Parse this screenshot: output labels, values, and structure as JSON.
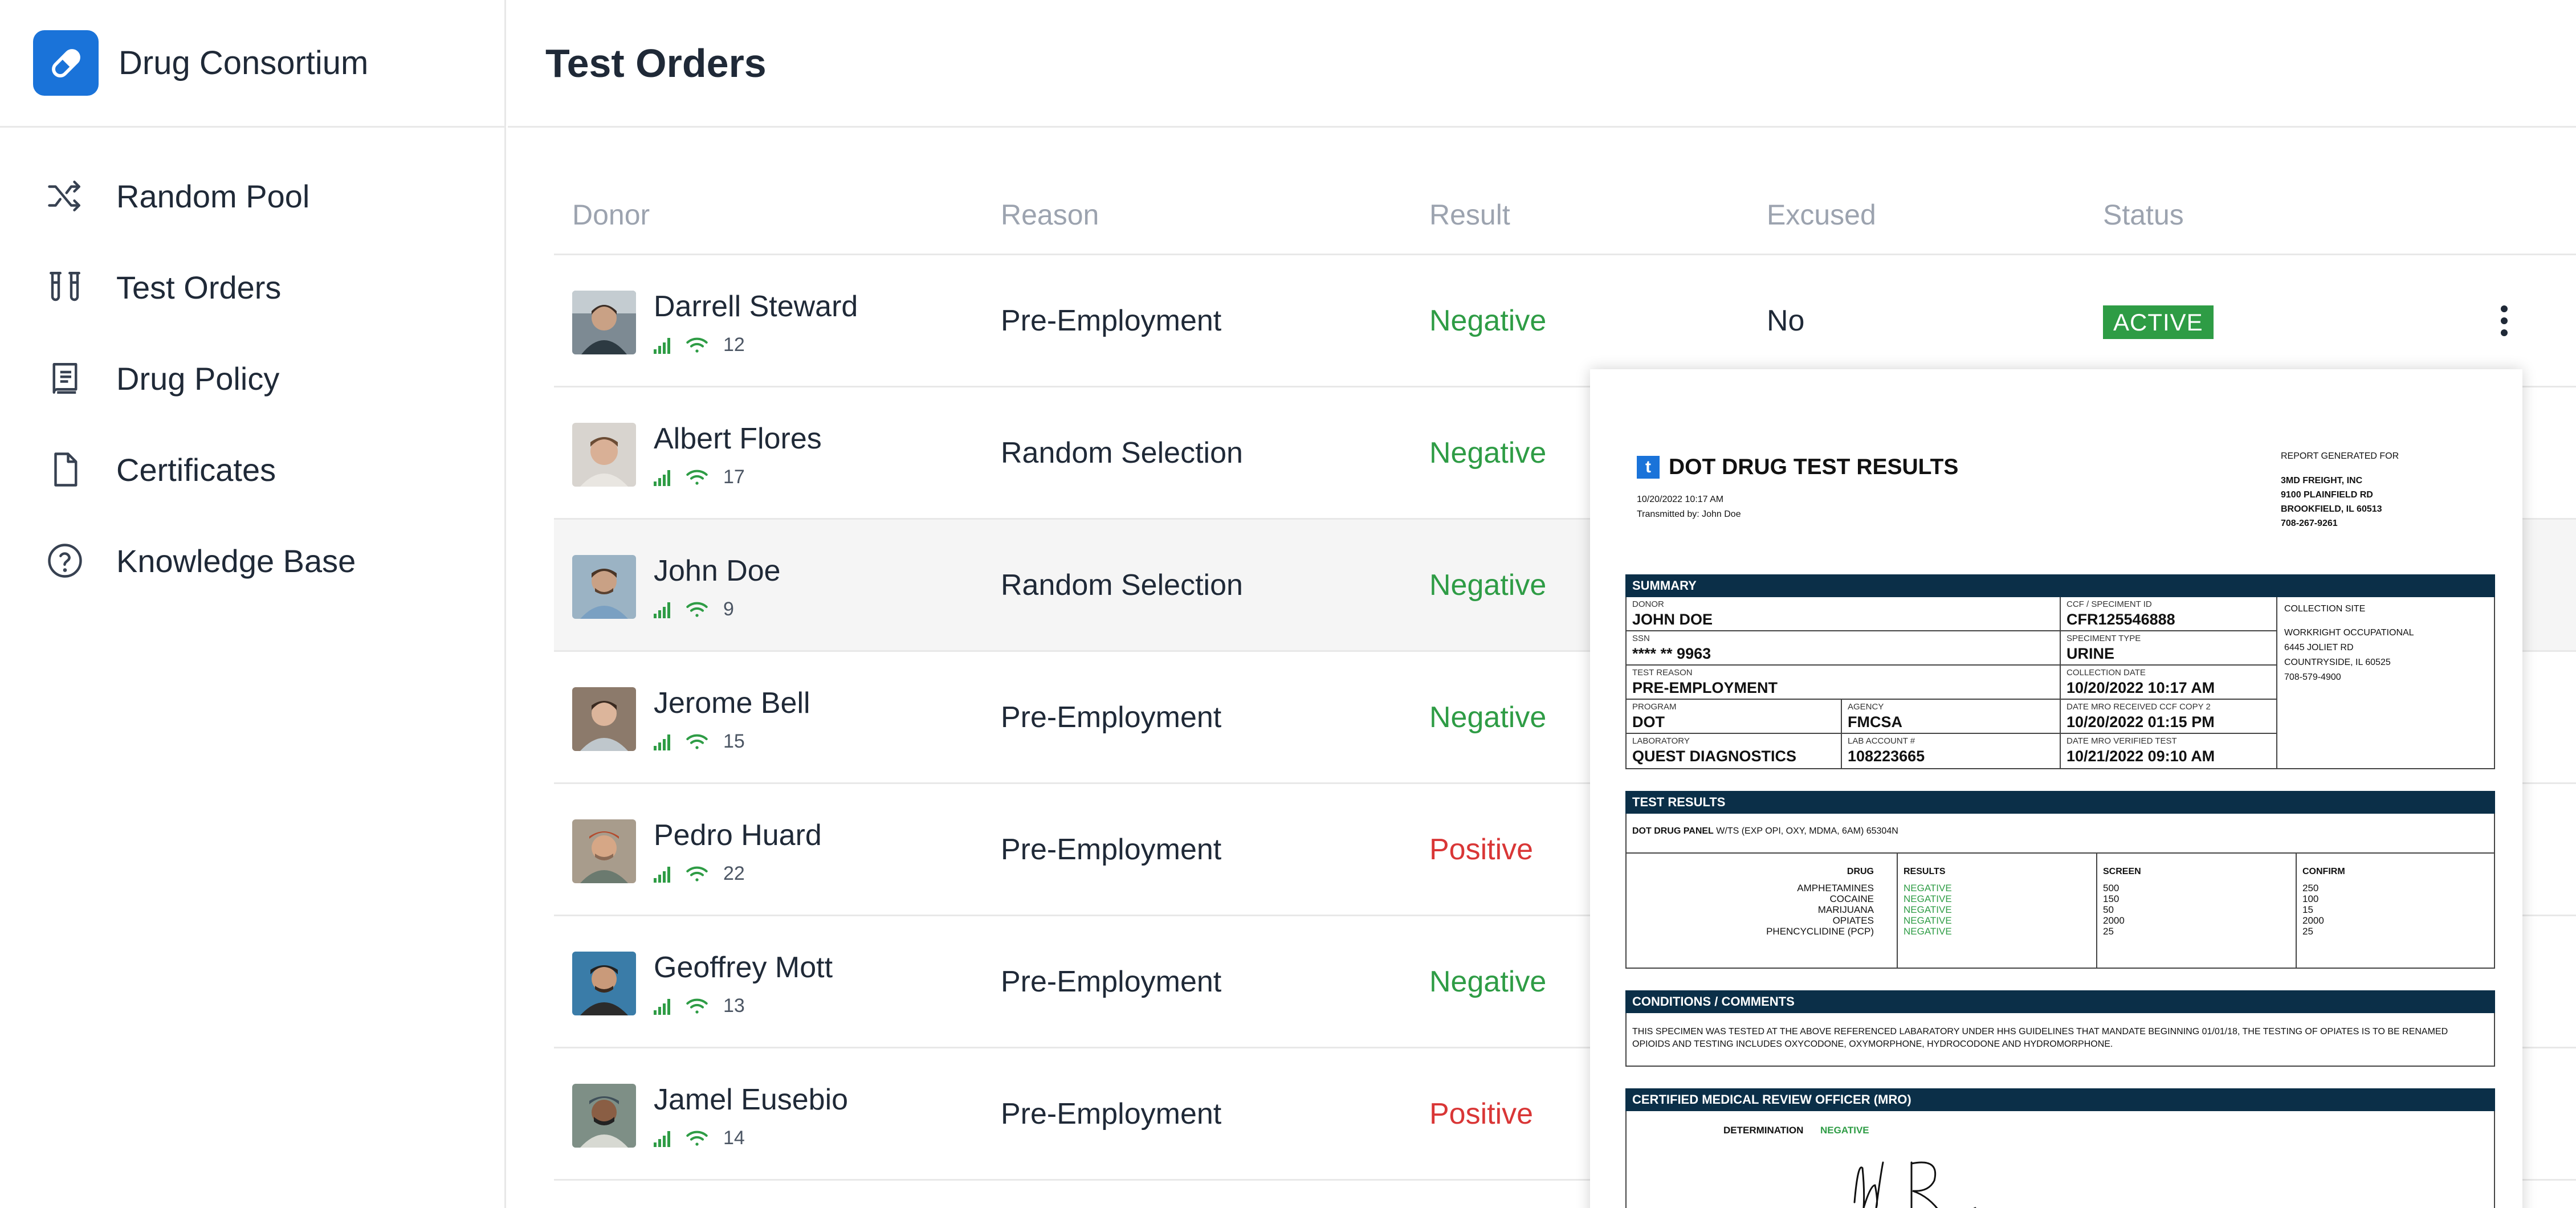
{
  "app": {
    "name": "Drug Consortium"
  },
  "sidebar": {
    "items": [
      {
        "label": "Random Pool",
        "icon": "shuffle-icon"
      },
      {
        "label": "Test Orders",
        "icon": "test-tubes-icon"
      },
      {
        "label": "Drug Policy",
        "icon": "book-icon"
      },
      {
        "label": "Certificates",
        "icon": "document-icon"
      },
      {
        "label": "Knowledge Base",
        "icon": "help-circle-icon"
      }
    ]
  },
  "page": {
    "title": "Test Orders"
  },
  "table": {
    "headers": [
      "Donor",
      "Reason",
      "Result",
      "Excused",
      "Status"
    ],
    "rows": [
      {
        "name": "Darrell Steward",
        "count": "12",
        "reason": "Pre-Employment",
        "result": "Negative",
        "excused": "No",
        "status": "ACTIVE"
      },
      {
        "name": "Albert Flores",
        "count": "17",
        "reason": "Random Selection",
        "result": "Negative"
      },
      {
        "name": "John Doe",
        "count": "9",
        "reason": "Random Selection",
        "result": "Negative"
      },
      {
        "name": "Jerome Bell",
        "count": "15",
        "reason": "Pre-Employment",
        "result": "Negative"
      },
      {
        "name": "Pedro Huard",
        "count": "22",
        "reason": "Pre-Employment",
        "result": "Positive"
      },
      {
        "name": "Geoffrey Mott",
        "count": "13",
        "reason": "Pre-Employment",
        "result": "Negative"
      },
      {
        "name": "Jamel Eusebio",
        "count": "14",
        "reason": "Pre-Employment",
        "result": "Positive"
      }
    ]
  },
  "report": {
    "logo_letter": "t",
    "title": "DOT DRUG TEST RESULTS",
    "datetime": "10/20/2022 10:17 AM",
    "transmitted": "Transmitted by: John Doe",
    "generated_for_label": "REPORT GENERATED FOR",
    "generated_for": [
      "3MD FREIGHT, INC",
      "9100 PLAINFIELD RD",
      "BROOKFIELD, IL 60513",
      "708-267-9261"
    ],
    "summary_title": "SUMMARY",
    "summary": {
      "donor_label": "DONOR",
      "donor": "JOHN DOE",
      "ccf_label": "CCF / SPECIMENT ID",
      "ccf": "CFR125546888",
      "ssn_label": "SSN",
      "ssn": "**** ** 9963",
      "specimen_label": "SPECIMENT TYPE",
      "specimen": "URINE",
      "reason_label": "TEST REASON",
      "reason": "PRE-EMPLOYMENT",
      "collection_label": "COLLECTION DATE",
      "collection": "10/20/2022 10:17 AM",
      "program_label": "PROGRAM",
      "program": "DOT",
      "agency_label": "AGENCY",
      "agency": "FMCSA",
      "mro_received_label": "DATE MRO RECEIVED CCF COPY 2",
      "mro_received": "10/20/2022 01:15 PM",
      "lab_label": "LABORATORY",
      "lab": "QUEST DIAGNOSTICS",
      "lab_account_label": "LAB ACCOUNT #",
      "lab_account": "108223665",
      "mro_verified_label": "DATE MRO VERIFIED TEST",
      "mro_verified": "10/21/2022 09:10 AM",
      "site_label": "COLLECTION SITE",
      "site": [
        "WORKRIGHT OCCUPATIONAL",
        "6445 JOLIET RD",
        "COUNTRYSIDE, IL 60525",
        "708-579-4900"
      ]
    },
    "results_title": "TEST RESULTS",
    "panel_label": "DOT DRUG PANEL",
    "panel": "W/TS (EXP OPI, OXY, MDMA, 6AM) 65304N",
    "columns": [
      "DRUG",
      "RESULTS",
      "SCREEN",
      "CONFIRM"
    ],
    "drugs": [
      {
        "drug": "AMPHETAMINES",
        "result": "NEGATIVE",
        "screen": "500",
        "confirm": "250"
      },
      {
        "drug": "COCAINE",
        "result": "NEGATIVE",
        "screen": "150",
        "confirm": "100"
      },
      {
        "drug": "MARIJUANA",
        "result": "NEGATIVE",
        "screen": "50",
        "confirm": "15"
      },
      {
        "drug": "OPIATES",
        "result": "NEGATIVE",
        "screen": "2000",
        "confirm": "2000"
      },
      {
        "drug": "PHENCYCLIDINE (PCP)",
        "result": "NEGATIVE",
        "screen": "25",
        "confirm": "25"
      }
    ],
    "conditions_title": "CONDITIONS / COMMENTS",
    "conditions": "THIS SPECIMEN WAS TESTED AT THE ABOVE REFERENCED LABARATORY UNDER HHS GUIDELINES THAT MANDATE BEGINNING 01/01/18, THE TESTING OF OPIATES IS TO BE RENAMED OPIOIDS AND TESTING INCLUDES OXYCODONE, OXYMORPHONE, HYDROCODONE AND HYDROMORPHONE.",
    "mro_title": "CERTIFIED MEDICAL REVIEW OFFICER (MRO)",
    "determination_label": "DETERMINATION",
    "determination": "NEGATIVE"
  },
  "colors": {
    "brand": "#1a73d9",
    "negative": "#2e9c45",
    "positive": "#d93636",
    "report_header": "#0b2f48"
  }
}
